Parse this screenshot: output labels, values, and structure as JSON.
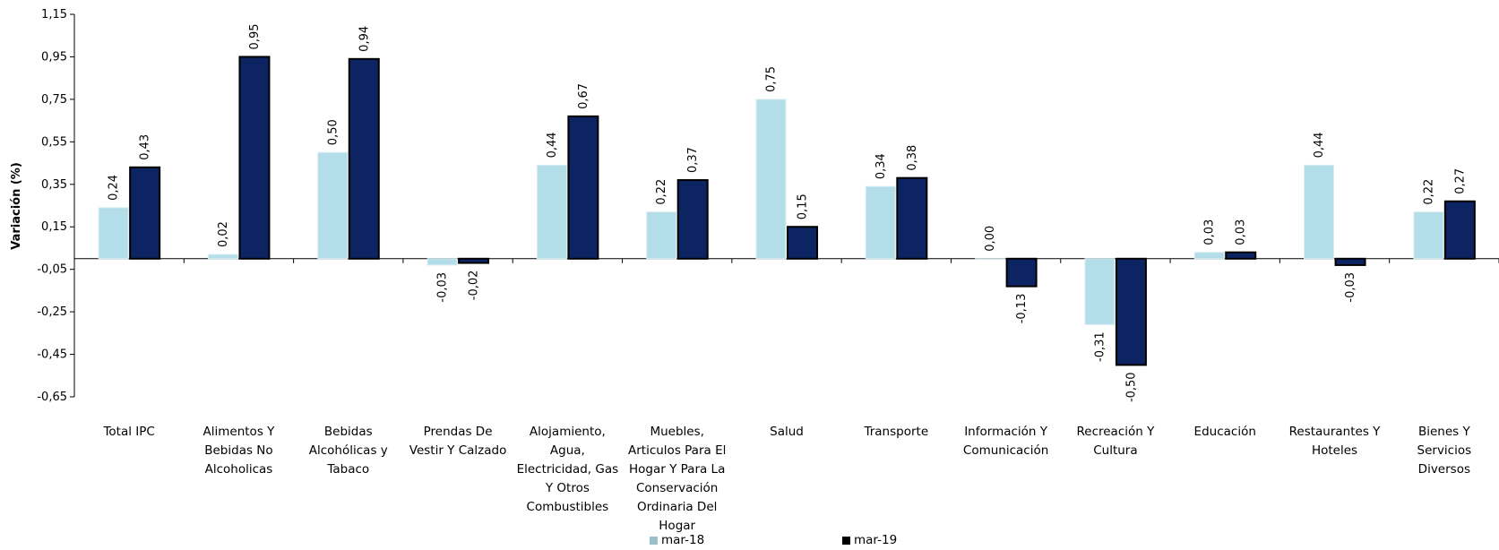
{
  "chart_data": {
    "type": "bar",
    "y_label": "Variación (%)",
    "categories": [
      "Total IPC",
      "Alimentos Y Bebidas No Alcoholicas",
      "Bebidas Alcohólicas y Tabaco",
      "Prendas De Vestir Y Calzado",
      "Alojamiento, Agua, Electricidad, Gas Y Otros Combustibles",
      "Muebles, Articulos Para El Hogar Y Para La Conservación Ordinaria Del Hogar",
      "Salud",
      "Transporte",
      "Información Y Comunicación",
      "Recreación Y Cultura",
      "Educación",
      "Restaurantes Y Hoteles",
      "Bienes Y Servicios Diversos"
    ],
    "series": [
      {
        "name": "mar-18",
        "color": "#b3dde8",
        "values": [
          0.24,
          0.02,
          0.5,
          -0.03,
          0.44,
          0.22,
          0.75,
          0.34,
          0.0,
          -0.31,
          0.03,
          0.44,
          0.22
        ],
        "value_labels": [
          "0,24",
          "0,02",
          "0,50",
          "-0,03",
          "0,44",
          "0,22",
          "0,75",
          "0,34",
          "0,00",
          "-0,31",
          "0,03",
          "0,44",
          "0,22"
        ]
      },
      {
        "name": "mar-19",
        "color": "#0c2562",
        "values": [
          0.43,
          0.95,
          0.94,
          -0.02,
          0.67,
          0.37,
          0.15,
          0.38,
          -0.13,
          -0.5,
          0.03,
          -0.03,
          0.27
        ],
        "value_labels": [
          "0,43",
          "0,95",
          "0,94",
          "-0,02",
          "0,67",
          "0,37",
          "0,15",
          "0,38",
          "-0,13",
          "-0,50",
          "0,03",
          "-0,03",
          "0,27"
        ]
      }
    ],
    "ylim": [
      -0.65,
      1.15
    ],
    "yticks": [
      {
        "value": 1.15,
        "label": "1,15"
      },
      {
        "value": 0.95,
        "label": "0,95"
      },
      {
        "value": 0.75,
        "label": "0,75"
      },
      {
        "value": 0.55,
        "label": "0,55"
      },
      {
        "value": 0.35,
        "label": "0,35"
      },
      {
        "value": 0.15,
        "label": "0,15"
      },
      {
        "value": -0.05,
        "label": "-0,05"
      },
      {
        "value": -0.25,
        "label": "-0,25"
      },
      {
        "value": -0.45,
        "label": "-0,45"
      },
      {
        "value": -0.65,
        "label": "-0,65"
      }
    ]
  }
}
